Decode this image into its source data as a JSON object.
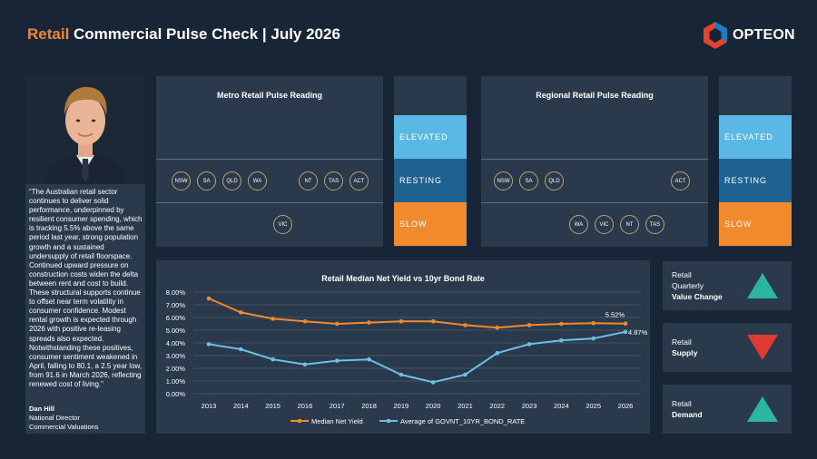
{
  "header": {
    "title_accent": "Retail",
    "title_rest": " Commercial Pulse Check | July 2026",
    "logo_text": "OPTEON"
  },
  "quote": {
    "text": "“The Australian retail sector continues to deliver solid performance, underpinned by resilient consumer spending, which is tracking 5.5% above the same period last year, strong population growth and a sustained undersupply of retail floorspace. Continued upward pressure on construction costs widen the delta between rent and cost to build. These structural supports continue to offset near term volatility in consumer confidence. Modest rental growth is expected through 2026 with positive re-leasing spreads also expected. Notwithstanding these positives, consumer sentiment weakened in April, falling to 80.1, a 2.5 year low, from 91.6 in March 2026, reflecting renewed cost of living.”",
    "author": "Dan Hill",
    "role_1": "National Director",
    "role_2": "Commercial Valuations"
  },
  "metro": {
    "title": "Metro Retail Pulse Reading",
    "states": {
      "elevated": "ELEVATED",
      "resting": "RESTING",
      "slow": "SLOW"
    },
    "resting": [
      "NSW",
      "SA",
      "QLD",
      "WA",
      "NT",
      "TAS",
      "ACT"
    ],
    "slow": [
      "VIC"
    ]
  },
  "regional": {
    "title": "Regional Retail Pulse Reading",
    "states": {
      "elevated": "ELEVATED",
      "resting": "RESTING",
      "slow": "SLOW"
    },
    "resting": [
      "NSW",
      "SA",
      "QLD",
      "ACT"
    ],
    "slow": [
      "WA",
      "VIC",
      "NT",
      "TAS"
    ]
  },
  "chart_data": {
    "type": "line",
    "title": "Retail Median Net Yield vs 10yr Bond Rate",
    "x": [
      "2013",
      "2014",
      "2015",
      "2016",
      "2017",
      "2018",
      "2019",
      "2020",
      "2021",
      "2022",
      "2023",
      "2024",
      "2025",
      "2026"
    ],
    "ylim": [
      0,
      8
    ],
    "yticks": [
      "0.00%",
      "1.00%",
      "2.00%",
      "3.00%",
      "4.00%",
      "5.00%",
      "6.00%",
      "7.00%",
      "8.00%"
    ],
    "grid": true,
    "legend": "bottom",
    "series": [
      {
        "name": "Median Net Yield",
        "color": "#f0892f",
        "values": [
          7.5,
          6.4,
          5.9,
          5.7,
          5.5,
          5.6,
          5.7,
          5.7,
          5.4,
          5.2,
          5.4,
          5.5,
          5.55,
          5.52
        ]
      },
      {
        "name": "Average of GOVNT_10YR_BOND_RATE",
        "color": "#6cbfe6",
        "values": [
          3.9,
          3.5,
          2.7,
          2.3,
          2.6,
          2.7,
          1.5,
          0.9,
          1.5,
          3.2,
          3.9,
          4.2,
          4.35,
          4.87
        ]
      }
    ],
    "annotations": [
      "5.52%",
      "4.87%"
    ]
  },
  "indicators": [
    {
      "line1": "Retail",
      "line2": "Quarterly",
      "line3": "Value Change",
      "direction": "up",
      "color": "#2bb6a3"
    },
    {
      "line1": "Retail",
      "line2": "Supply",
      "line3": "",
      "direction": "down",
      "color": "#e03a34"
    },
    {
      "line1": "Retail",
      "line2": "Demand",
      "line3": "",
      "direction": "up",
      "color": "#2bb6a3"
    }
  ]
}
